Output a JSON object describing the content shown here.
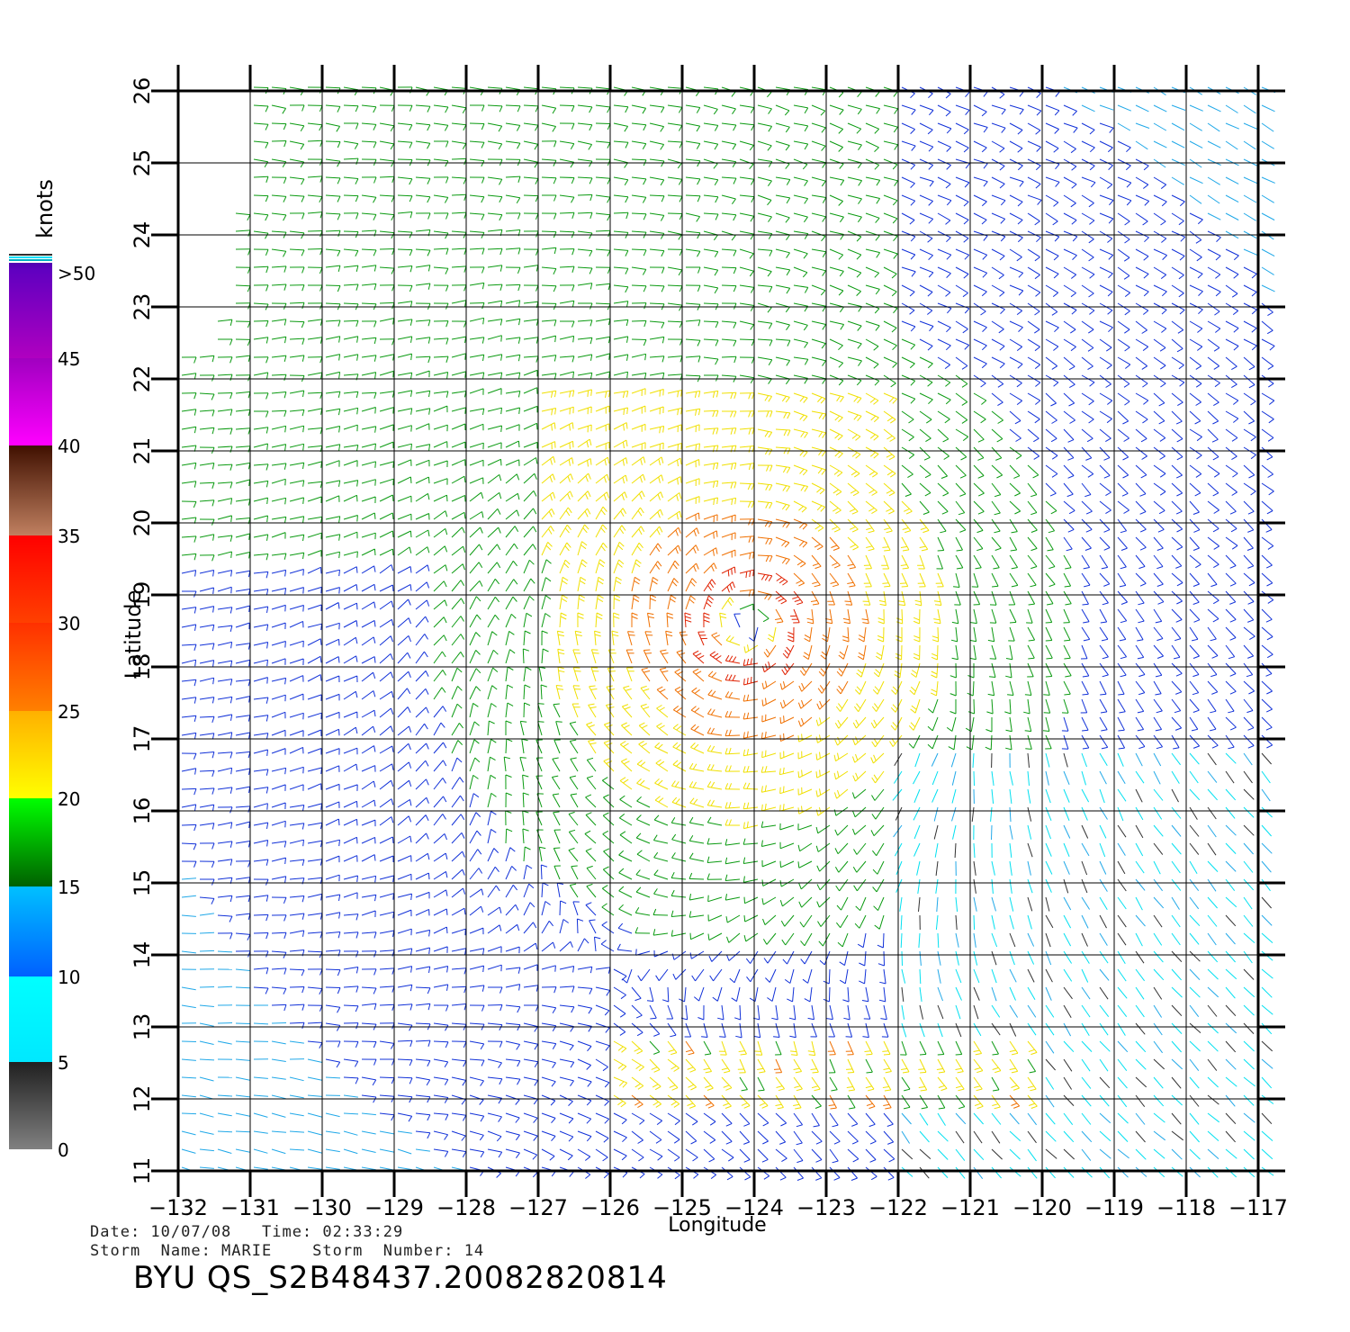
{
  "legend": {
    "unit": "knots",
    "stops": [
      {
        "label": "0",
        "from": "#808080",
        "to": "#202020"
      },
      {
        "label": "5",
        "from": "#00e8ff",
        "to": "#00ffff"
      },
      {
        "label": "10",
        "from": "#0060ff",
        "to": "#00c0ff"
      },
      {
        "label": "15",
        "from": "#006000",
        "to": "#00ff00"
      },
      {
        "label": "20",
        "from": "#ffff00",
        "to": "#ffb000"
      },
      {
        "label": "25",
        "from": "#ff8000",
        "to": "#ff3000"
      },
      {
        "label": "30",
        "from": "#ff4000",
        "to": "#ff0000"
      },
      {
        "label": "35",
        "from": "#c08060",
        "to": "#401000"
      },
      {
        "label": "40",
        "from": "#ff00ff",
        "to": "#a000c0"
      },
      {
        "label": "45",
        "from": "#b000c0",
        "to": "#6000c0"
      },
      {
        "label": ">50",
        "from": "#6000c0",
        "to": "#5000b0"
      }
    ]
  },
  "axes": {
    "xlabel": "Longitude",
    "ylabel": "Latitude",
    "lon_ticks": [
      "−132",
      "−131",
      "−130",
      "−129",
      "−128",
      "−127",
      "−126",
      "−125",
      "−124",
      "−123",
      "−122",
      "−121",
      "−120",
      "−119",
      "−118",
      "−117"
    ],
    "lat_ticks": [
      "11",
      "12",
      "13",
      "14",
      "15",
      "16",
      "17",
      "18",
      "19",
      "20",
      "21",
      "22",
      "23",
      "24",
      "25",
      "26"
    ],
    "lon_range": [
      -132,
      -117
    ],
    "lat_range": [
      11,
      26
    ]
  },
  "storm_center": {
    "lon": -124.1,
    "lat": 18.6
  },
  "info": {
    "line1": "Date: 10/07/08   Time: 02:33:29",
    "line2": "Storm  Name: MARIE    Storm  Number: 14"
  },
  "title": "BYU  QS_S2B48437.20082820814",
  "colors": {
    "grid": "#000000",
    "text": "#000000"
  }
}
